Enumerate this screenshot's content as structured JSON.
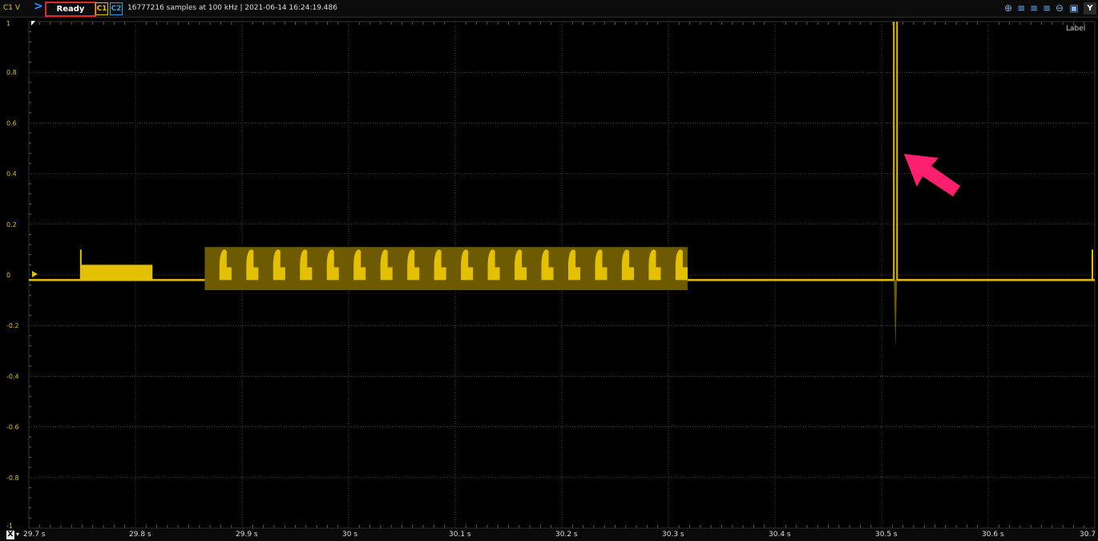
{
  "toolbar": {
    "channel_label": "C1 V",
    "status": "Ready",
    "c1": "C1",
    "c2": "C2",
    "acquisition_info": "16777216 samples at 100 kHz | 2021-06-14 16:24:19.486",
    "y_button": "Y"
  },
  "label_tag": "Label",
  "x_axis": {
    "button": "X",
    "ticks": [
      "29.7 s",
      "29.8 s",
      "29.9 s",
      "30 s",
      "30.1 s",
      "30.2 s",
      "30.3 s",
      "30.4 s",
      "30.5 s",
      "30.6 s",
      "30.7 s"
    ]
  },
  "colors": {
    "trace": "#e3c000",
    "envelope": "#6e5a00",
    "grid": "#3a3a3a",
    "arrow": "#ff1f6e",
    "status_border": "#e0292f"
  },
  "chart_data": {
    "type": "line",
    "xlabel": "",
    "ylabel": "V",
    "xlim": [
      29.7,
      30.7
    ],
    "ylim": [
      -1,
      1
    ],
    "y_ticks": [
      "1",
      "0.8",
      "0.6",
      "0.4",
      "0.2",
      "0",
      "-0.2",
      "-0.4",
      "-0.6",
      "-0.8",
      "-1"
    ],
    "baseline": -0.02,
    "first_burst": {
      "x_start": 29.748,
      "x_end": 29.816,
      "level": 0.04,
      "peak": 0.1
    },
    "pulse_train": {
      "x_start": 29.865,
      "x_end": 30.318,
      "count": 18,
      "envelope_max": 0.11,
      "envelope_min": -0.06,
      "level": 0.03,
      "peak": 0.1
    },
    "spike": {
      "x": 30.513,
      "max": 1.0,
      "min": -0.29
    },
    "grid": true
  }
}
